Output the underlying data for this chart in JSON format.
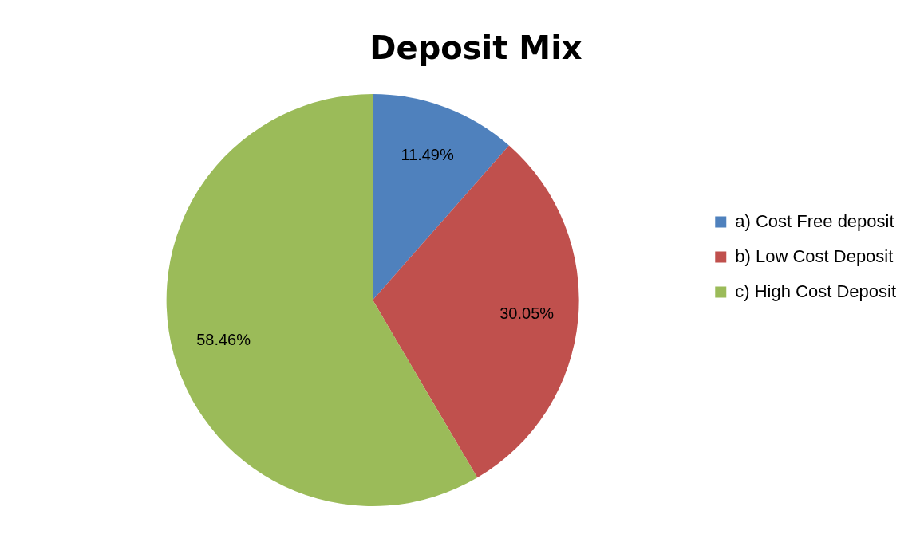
{
  "chart_data": {
    "type": "pie",
    "title": "Deposit Mix",
    "categories": [
      "a) Cost Free deposit",
      "b) Low Cost Deposit",
      "c) High Cost Deposit"
    ],
    "values": [
      11.49,
      30.05,
      58.46
    ],
    "value_labels": [
      "11.49%",
      "30.05%",
      "58.46%"
    ],
    "colors": [
      "#4f81bd",
      "#c0504d",
      "#9bbb59"
    ],
    "legend": "right"
  }
}
